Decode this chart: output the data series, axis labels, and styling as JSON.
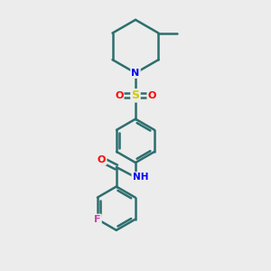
{
  "background_color": "#ececec",
  "bond_color": "#2d6e6e",
  "bond_width": 1.8,
  "atom_colors": {
    "N": "#0000ff",
    "O": "#ff0000",
    "S": "#cccc00",
    "F": "#cc44aa",
    "C": "#000000"
  },
  "figsize": [
    3.0,
    3.0
  ],
  "dpi": 100
}
